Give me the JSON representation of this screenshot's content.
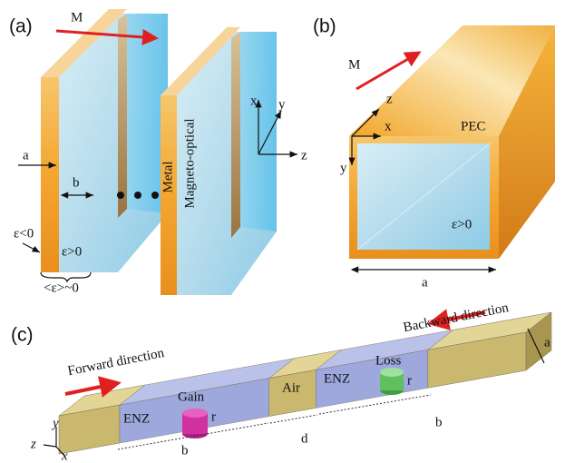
{
  "panel_a": {
    "label": "(a)",
    "field": "M",
    "dim_a": "a",
    "dim_b": "b",
    "eps_neg": "ε<0",
    "eps_pos": "ε>0",
    "eps_avg": "<ε>~0",
    "metal": "Metal",
    "magneto": "Magneto-optical",
    "axis_x": "x",
    "axis_y": "y",
    "axis_z": "z"
  },
  "panel_b": {
    "label": "(b)",
    "field": "M",
    "axis_z": "z",
    "axis_x": "x",
    "axis_y": "y",
    "pec": "PEC",
    "eps_pos": "ε>0",
    "dim_a": "a"
  },
  "panel_c": {
    "label": "(c)",
    "forward": "Forward direction",
    "backward": "Backward direction",
    "dim_a": "a",
    "enz_1": "ENZ",
    "gain": "Gain",
    "r_1": "r",
    "air": "Air",
    "enz_2": "ENZ",
    "loss": "Loss",
    "r_2": "r",
    "dim_b_1": "b",
    "dim_d": "d",
    "dim_b_2": "b",
    "axis_y": "y",
    "axis_z": "z",
    "axis_x": "x"
  }
}
